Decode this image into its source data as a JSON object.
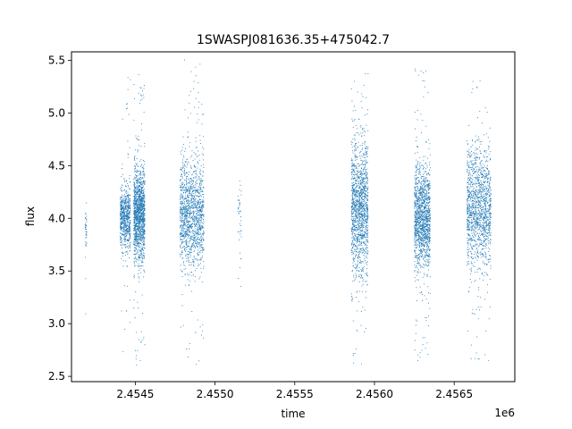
{
  "chart_data": {
    "type": "scatter",
    "title": "1SWASPJ081636.35+475042.7",
    "xlabel": "time",
    "ylabel": "flux",
    "x_offset_label": "1e6",
    "xlim": [
      2454100,
      2456880
    ],
    "ylim": [
      2.45,
      5.58
    ],
    "xticks": [
      2454500,
      2455000,
      2455500,
      2456000,
      2456500
    ],
    "xtick_labels": [
      "2.4545",
      "2.4550",
      "2.4555",
      "2.4560",
      "2.4565"
    ],
    "yticks": [
      2.5,
      3.0,
      3.5,
      4.0,
      4.5,
      5.0,
      5.5
    ],
    "ytick_labels": [
      "2.5",
      "3.0",
      "3.5",
      "4.0",
      "4.5",
      "5.0",
      "5.5"
    ],
    "grid": false,
    "marker_color": "#1f77b4",
    "clusters": [
      {
        "x_range": [
          2454185,
          2454195
        ],
        "y_core": [
          3.6,
          4.2
        ],
        "y_extreme": [
          2.9,
          4.2
        ],
        "density": "sparse"
      },
      {
        "x_range": [
          2454405,
          2454470
        ],
        "y_core": [
          3.6,
          4.4
        ],
        "y_extreme": [
          2.7,
          5.35
        ],
        "density": "medium"
      },
      {
        "x_range": [
          2454490,
          2454560
        ],
        "y_core": [
          3.5,
          4.6
        ],
        "y_extreme": [
          2.58,
          5.38
        ],
        "density": "dense"
      },
      {
        "x_range": [
          2454780,
          2454930
        ],
        "y_core": [
          3.4,
          4.7
        ],
        "y_extreme": [
          2.6,
          5.55
        ],
        "density": "dense"
      },
      {
        "x_range": [
          2455140,
          2455165
        ],
        "y_core": [
          3.6,
          4.5
        ],
        "y_extreme": [
          3.3,
          4.5
        ],
        "density": "sparse"
      },
      {
        "x_range": [
          2455855,
          2455960
        ],
        "y_core": [
          3.3,
          4.9
        ],
        "y_extreme": [
          2.6,
          5.4
        ],
        "density": "dense"
      },
      {
        "x_range": [
          2456250,
          2456350
        ],
        "y_core": [
          3.4,
          4.6
        ],
        "y_extreme": [
          2.6,
          5.42
        ],
        "density": "dense"
      },
      {
        "x_range": [
          2456580,
          2456730
        ],
        "y_core": [
          3.4,
          4.8
        ],
        "y_extreme": [
          2.62,
          5.33
        ],
        "density": "dense"
      }
    ]
  }
}
